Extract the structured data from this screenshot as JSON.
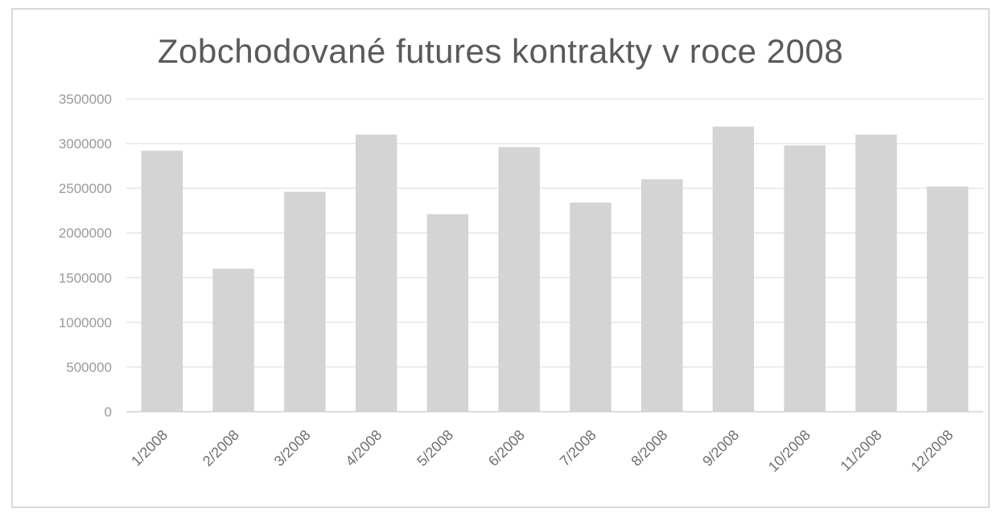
{
  "chart_data": {
    "type": "bar",
    "title": "Zobchodované futures kontrakty v roce 2008",
    "xlabel": "",
    "ylabel": "",
    "categories": [
      "1/2008",
      "2/2008",
      "3/2008",
      "4/2008",
      "5/2008",
      "6/2008",
      "7/2008",
      "8/2008",
      "9/2008",
      "10/2008",
      "11/2008",
      "12/2008"
    ],
    "values": [
      2920000,
      1600000,
      2460000,
      3100000,
      2210000,
      2960000,
      2340000,
      2600000,
      3190000,
      2980000,
      3100000,
      2520000
    ],
    "ylim": [
      0,
      3500000
    ],
    "yticks": [
      "0",
      "500000",
      "1000000",
      "1500000",
      "2000000",
      "2500000",
      "3000000",
      "3500000"
    ],
    "grid": true,
    "legend": "none",
    "bar_color": "#d4d4d4"
  }
}
